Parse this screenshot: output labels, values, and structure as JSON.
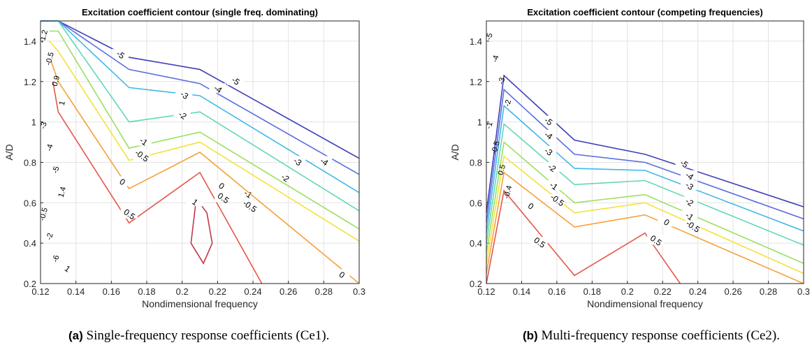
{
  "chart_data": [
    {
      "type": "contour",
      "title": "Excitation coefficient contour (single freq. dominating)",
      "xlabel": "Nondimensional frequency",
      "ylabel": "A/D",
      "xlim": [
        0.12,
        0.3
      ],
      "ylim": [
        0.2,
        1.5
      ],
      "xticks": [
        "0.12",
        "0.14",
        "0.16",
        "0.18",
        "0.2",
        "0.22",
        "0.24",
        "0.26",
        "0.28",
        "0.3"
      ],
      "yticks": [
        "0.2",
        "0.4",
        "0.6",
        "0.8",
        "1",
        "1.2",
        "1.4"
      ],
      "grid": true,
      "levels": [
        {
          "level": "-5",
          "color": "#3f3fb8",
          "points": [
            [
              0.12,
              1.5
            ],
            [
              0.13,
              1.5
            ],
            [
              0.17,
              1.32
            ],
            [
              0.21,
              1.26
            ],
            [
              0.3,
              0.82
            ]
          ],
          "labels": [
            {
              "text": "-5",
              "x": 0.165,
              "y": 1.33
            },
            {
              "text": "-5",
              "x": 0.23,
              "y": 1.2
            }
          ]
        },
        {
          "level": "-4",
          "color": "#5a6ee0",
          "points": [
            [
              0.12,
              1.5
            ],
            [
              0.13,
              1.5
            ],
            [
              0.17,
              1.26
            ],
            [
              0.21,
              1.19
            ],
            [
              0.3,
              0.74
            ]
          ],
          "labels": [
            {
              "text": "-4",
              "x": 0.22,
              "y": 1.16
            },
            {
              "text": "-4",
              "x": 0.28,
              "y": 0.8
            }
          ]
        },
        {
          "level": "-3",
          "color": "#3fb8e8",
          "points": [
            [
              0.12,
              1.5
            ],
            [
              0.13,
              1.5
            ],
            [
              0.17,
              1.17
            ],
            [
              0.21,
              1.13
            ],
            [
              0.3,
              0.65
            ]
          ],
          "labels": [
            {
              "text": "-3",
              "x": 0.201,
              "y": 1.13
            },
            {
              "text": "-3",
              "x": 0.265,
              "y": 0.8
            }
          ]
        },
        {
          "level": "-2",
          "color": "#62d7b8",
          "points": [
            [
              0.125,
              1.5
            ],
            [
              0.13,
              1.5
            ],
            [
              0.17,
              1.0
            ],
            [
              0.21,
              1.05
            ],
            [
              0.3,
              0.56
            ]
          ],
          "labels": [
            {
              "text": "-2",
              "x": 0.2,
              "y": 1.03
            },
            {
              "text": "-2",
              "x": 0.258,
              "y": 0.72
            }
          ]
        },
        {
          "level": "-1",
          "color": "#9adf60",
          "points": [
            [
              0.125,
              1.45
            ],
            [
              0.13,
              1.45
            ],
            [
              0.17,
              0.87
            ],
            [
              0.21,
              0.95
            ],
            [
              0.3,
              0.47
            ]
          ],
          "labels": [
            {
              "text": "-1",
              "x": 0.178,
              "y": 0.9
            },
            {
              "text": "-1",
              "x": 0.237,
              "y": 0.64
            }
          ]
        },
        {
          "level": "-0.5",
          "color": "#f2e23a",
          "points": [
            [
              0.125,
              1.4
            ],
            [
              0.13,
              1.35
            ],
            [
              0.17,
              0.81
            ],
            [
              0.21,
              0.9
            ],
            [
              0.3,
              0.41
            ]
          ],
          "labels": [
            {
              "text": "-0.5",
              "x": 0.177,
              "y": 0.83
            },
            {
              "text": "-0.5",
              "x": 0.238,
              "y": 0.58
            }
          ]
        },
        {
          "level": "0",
          "color": "#f5a13a",
          "points": [
            [
              0.126,
              1.3
            ],
            [
              0.13,
              1.2
            ],
            [
              0.17,
              0.67
            ],
            [
              0.21,
              0.85
            ],
            [
              0.3,
              0.2
            ]
          ],
          "labels": [
            {
              "text": "0",
              "x": 0.166,
              "y": 0.7
            },
            {
              "text": "0",
              "x": 0.222,
              "y": 0.68
            },
            {
              "text": "0",
              "x": 0.29,
              "y": 0.24
            }
          ]
        },
        {
          "level": "0.5",
          "color": "#e5574a",
          "points": [
            [
              0.127,
              1.2
            ],
            [
              0.13,
              1.05
            ],
            [
              0.17,
              0.5
            ],
            [
              0.21,
              0.75
            ],
            [
              0.245,
              0.2
            ]
          ],
          "labels": [
            {
              "text": "0.5",
              "x": 0.17,
              "y": 0.54
            },
            {
              "text": "0.5",
              "x": 0.223,
              "y": 0.62
            }
          ]
        },
        {
          "level": "1",
          "color": "#c0394a",
          "points": [
            [
              0.205,
              0.4
            ],
            [
              0.208,
              0.62
            ],
            [
              0.214,
              0.55
            ],
            [
              0.217,
              0.4
            ],
            [
              0.212,
              0.3
            ],
            [
              0.205,
              0.4
            ]
          ],
          "labels": [
            {
              "text": "1",
              "x": 0.207,
              "y": 0.6
            },
            {
              "text": "1",
              "x": 0.135,
              "y": 0.27
            }
          ]
        }
      ],
      "extra_labels": [
        "-1.2",
        "-0.5",
        "0.9",
        "1",
        "-3",
        "-4",
        "-5",
        "1.4",
        "-0.5",
        "-2",
        "-6"
      ]
    },
    {
      "type": "contour",
      "title": "Excitation coefficient contour (competing frequencies)",
      "xlabel": "Nondimensional frequency",
      "ylabel": "A/D",
      "xlim": [
        0.12,
        0.3
      ],
      "ylim": [
        0.2,
        1.5
      ],
      "xticks": [
        "0.12",
        "0.14",
        "0.16",
        "0.18",
        "0.2",
        "0.22",
        "0.24",
        "0.26",
        "0.28",
        "0.3"
      ],
      "yticks": [
        "0.2",
        "0.4",
        "0.6",
        "0.8",
        "1",
        "1.2",
        "1.4"
      ],
      "grid": true,
      "levels": [
        {
          "level": "-5",
          "color": "#3f3fb8",
          "points": [
            [
              0.12,
              0.55
            ],
            [
              0.13,
              1.23
            ],
            [
              0.17,
              0.91
            ],
            [
              0.21,
              0.84
            ],
            [
              0.3,
              0.58
            ]
          ],
          "labels": [
            {
              "text": "-5",
              "x": 0.155,
              "y": 1.0
            },
            {
              "text": "-5",
              "x": 0.232,
              "y": 0.79
            }
          ]
        },
        {
          "level": "-4",
          "color": "#5a6ee0",
          "points": [
            [
              0.12,
              0.5
            ],
            [
              0.13,
              1.16
            ],
            [
              0.17,
              0.84
            ],
            [
              0.21,
              0.8
            ],
            [
              0.3,
              0.52
            ]
          ],
          "labels": [
            {
              "text": "-4",
              "x": 0.155,
              "y": 0.93
            },
            {
              "text": "-4",
              "x": 0.235,
              "y": 0.73
            }
          ]
        },
        {
          "level": "-3",
          "color": "#3fb8e8",
          "points": [
            [
              0.12,
              0.45
            ],
            [
              0.13,
              1.08
            ],
            [
              0.17,
              0.77
            ],
            [
              0.21,
              0.76
            ],
            [
              0.3,
              0.46
            ]
          ],
          "labels": [
            {
              "text": "-3",
              "x": 0.155,
              "y": 0.85
            },
            {
              "text": "-3",
              "x": 0.235,
              "y": 0.68
            }
          ]
        },
        {
          "level": "-2",
          "color": "#62d7b8",
          "points": [
            [
              0.12,
              0.4
            ],
            [
              0.13,
              0.99
            ],
            [
              0.17,
              0.69
            ],
            [
              0.21,
              0.71
            ],
            [
              0.3,
              0.39
            ]
          ],
          "labels": [
            {
              "text": "-2",
              "x": 0.157,
              "y": 0.77
            },
            {
              "text": "-2",
              "x": 0.235,
              "y": 0.6
            }
          ]
        },
        {
          "level": "-1",
          "color": "#9adf60",
          "points": [
            [
              0.12,
              0.35
            ],
            [
              0.13,
              0.9
            ],
            [
              0.17,
              0.6
            ],
            [
              0.21,
              0.64
            ],
            [
              0.3,
              0.3
            ]
          ],
          "labels": [
            {
              "text": "-1",
              "x": 0.158,
              "y": 0.68
            },
            {
              "text": "-1",
              "x": 0.235,
              "y": 0.53
            }
          ]
        },
        {
          "level": "-0.5",
          "color": "#f2e23a",
          "points": [
            [
              0.12,
              0.3
            ],
            [
              0.13,
              0.83
            ],
            [
              0.17,
              0.55
            ],
            [
              0.21,
              0.6
            ],
            [
              0.3,
              0.25
            ]
          ],
          "labels": [
            {
              "text": "-0.5",
              "x": 0.16,
              "y": 0.61
            },
            {
              "text": "-0.5",
              "x": 0.237,
              "y": 0.48
            }
          ]
        },
        {
          "level": "0",
          "color": "#f5a13a",
          "points": [
            [
              0.12,
              0.25
            ],
            [
              0.13,
              0.75
            ],
            [
              0.17,
              0.48
            ],
            [
              0.21,
              0.54
            ],
            [
              0.3,
              0.2
            ]
          ],
          "labels": [
            {
              "text": "0",
              "x": 0.145,
              "y": 0.58
            },
            {
              "text": "0",
              "x": 0.222,
              "y": 0.5
            }
          ]
        },
        {
          "level": "0.5",
          "color": "#e5574a",
          "points": [
            [
              0.12,
              0.2
            ],
            [
              0.13,
              0.66
            ],
            [
              0.17,
              0.24
            ],
            [
              0.21,
              0.45
            ],
            [
              0.23,
              0.2
            ]
          ],
          "labels": [
            {
              "text": "0.5",
              "x": 0.15,
              "y": 0.4
            },
            {
              "text": "0.5",
              "x": 0.216,
              "y": 0.41
            }
          ]
        }
      ],
      "extra_labels": [
        "-5",
        "-4",
        "-3",
        "-2",
        "-1",
        "-0.5",
        "0.5",
        "-0.4"
      ]
    }
  ],
  "captions": [
    {
      "tag": "(a)",
      "text": "Single-frequency response coefficients (Ce1)."
    },
    {
      "tag": "(b)",
      "text": "Multi-frequency response coefficients (Ce2)."
    }
  ]
}
